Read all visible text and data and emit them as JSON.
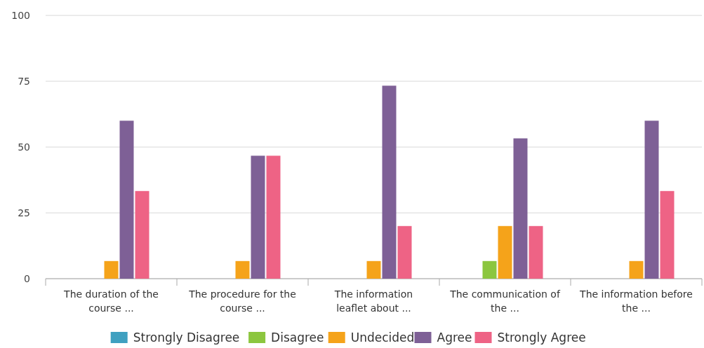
{
  "chart_data": {
    "type": "bar",
    "categories": [
      "The duration of the course ...",
      "The procedure for the course ...",
      "The information leaflet about ...",
      "The communication of the ...",
      "The information before the ..."
    ],
    "series": [
      {
        "name": "Strongly Disagree",
        "color": "#3fa0c0",
        "values": [
          0,
          0,
          0,
          0,
          0
        ]
      },
      {
        "name": "Disagree",
        "color": "#8cc63f",
        "values": [
          0,
          0,
          0,
          6.7,
          0
        ]
      },
      {
        "name": "Undecided",
        "color": "#f5a31a",
        "values": [
          6.7,
          6.7,
          6.7,
          20,
          6.7
        ]
      },
      {
        "name": "Agree",
        "color": "#7e6096",
        "values": [
          60,
          46.7,
          73.3,
          53.3,
          60
        ]
      },
      {
        "name": "Strongly Agree",
        "color": "#ee6385",
        "values": [
          33.3,
          46.7,
          20,
          20,
          33.3
        ]
      }
    ],
    "ylim": [
      0,
      100
    ],
    "yticks": [
      0,
      25,
      50,
      75,
      100
    ],
    "grid": "y",
    "legend": "bottom"
  }
}
